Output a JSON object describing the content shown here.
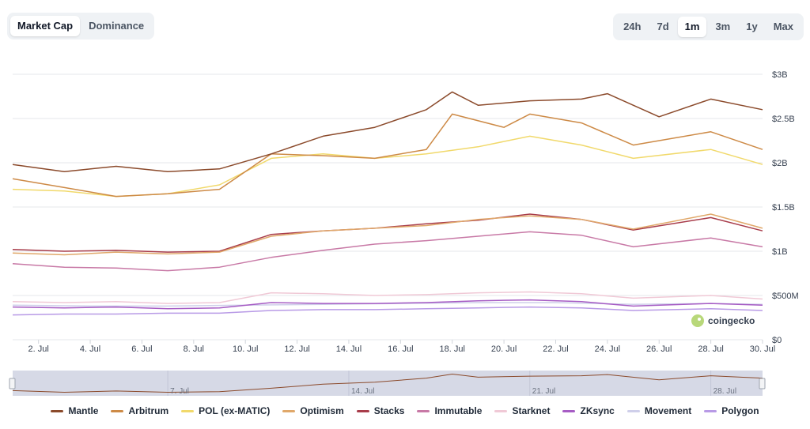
{
  "tabs_left": [
    {
      "label": "Market Cap",
      "active": true
    },
    {
      "label": "Dominance",
      "active": false
    }
  ],
  "tabs_right": [
    {
      "label": "24h",
      "active": false
    },
    {
      "label": "7d",
      "active": false
    },
    {
      "label": "1m",
      "active": true
    },
    {
      "label": "3m",
      "active": false
    },
    {
      "label": "1y",
      "active": false
    },
    {
      "label": "Max",
      "active": false
    }
  ],
  "watermark": "coingecko",
  "chart_data": {
    "type": "line",
    "x_start": "2024-07-01",
    "x_end": "2024-07-30",
    "x_tick_labels": [
      "2. Jul",
      "4. Jul",
      "6. Jul",
      "8. Jul",
      "10. Jul",
      "12. Jul",
      "14. Jul",
      "16. Jul",
      "18. Jul",
      "20. Jul",
      "22. Jul",
      "24. Jul",
      "26. Jul",
      "28. Jul",
      "30. Jul"
    ],
    "x_ticks": [
      "2024-07-02",
      "2024-07-04",
      "2024-07-06",
      "2024-07-08",
      "2024-07-10",
      "2024-07-12",
      "2024-07-14",
      "2024-07-16",
      "2024-07-18",
      "2024-07-20",
      "2024-07-22",
      "2024-07-24",
      "2024-07-26",
      "2024-07-28",
      "2024-07-30"
    ],
    "y_tick_labels": [
      "$0",
      "$500M",
      "$1B",
      "$1.5B",
      "$2B",
      "$2.5B",
      "$3B"
    ],
    "y_ticks": [
      0,
      500000000,
      1000000000,
      1500000000,
      2000000000,
      2500000000,
      3000000000
    ],
    "ylim": [
      0,
      3000000000
    ],
    "grid": true,
    "legend_position": "bottom",
    "navigator_labels": [
      "7. Jul",
      "14. Jul",
      "21. Jul",
      "28. Jul"
    ],
    "navigator_ticks": [
      "2024-07-07",
      "2024-07-14",
      "2024-07-21",
      "2024-07-28"
    ],
    "series": [
      {
        "name": "Mantle",
        "color": "#8b4a2b",
        "points": [
          [
            "2024-07-01",
            1980000000
          ],
          [
            "2024-07-03",
            1900000000
          ],
          [
            "2024-07-05",
            1960000000
          ],
          [
            "2024-07-07",
            1900000000
          ],
          [
            "2024-07-09",
            1930000000
          ],
          [
            "2024-07-11",
            2100000000
          ],
          [
            "2024-07-13",
            2300000000
          ],
          [
            "2024-07-15",
            2400000000
          ],
          [
            "2024-07-17",
            2600000000
          ],
          [
            "2024-07-18",
            2800000000
          ],
          [
            "2024-07-19",
            2650000000
          ],
          [
            "2024-07-21",
            2700000000
          ],
          [
            "2024-07-23",
            2720000000
          ],
          [
            "2024-07-24",
            2780000000
          ],
          [
            "2024-07-26",
            2520000000
          ],
          [
            "2024-07-28",
            2720000000
          ],
          [
            "2024-07-30",
            2600000000
          ]
        ]
      },
      {
        "name": "Arbitrum",
        "color": "#cd8a46",
        "points": [
          [
            "2024-07-01",
            1820000000
          ],
          [
            "2024-07-03",
            1720000000
          ],
          [
            "2024-07-05",
            1620000000
          ],
          [
            "2024-07-07",
            1650000000
          ],
          [
            "2024-07-09",
            1700000000
          ],
          [
            "2024-07-11",
            2100000000
          ],
          [
            "2024-07-13",
            2080000000
          ],
          [
            "2024-07-15",
            2050000000
          ],
          [
            "2024-07-17",
            2150000000
          ],
          [
            "2024-07-18",
            2550000000
          ],
          [
            "2024-07-20",
            2400000000
          ],
          [
            "2024-07-21",
            2550000000
          ],
          [
            "2024-07-23",
            2450000000
          ],
          [
            "2024-07-25",
            2200000000
          ],
          [
            "2024-07-28",
            2350000000
          ],
          [
            "2024-07-30",
            2150000000
          ]
        ]
      },
      {
        "name": "POL (ex-MATIC)",
        "color": "#f1d96b",
        "points": [
          [
            "2024-07-01",
            1700000000
          ],
          [
            "2024-07-03",
            1680000000
          ],
          [
            "2024-07-05",
            1620000000
          ],
          [
            "2024-07-07",
            1650000000
          ],
          [
            "2024-07-09",
            1750000000
          ],
          [
            "2024-07-11",
            2050000000
          ],
          [
            "2024-07-13",
            2100000000
          ],
          [
            "2024-07-15",
            2050000000
          ],
          [
            "2024-07-17",
            2100000000
          ],
          [
            "2024-07-19",
            2180000000
          ],
          [
            "2024-07-21",
            2300000000
          ],
          [
            "2024-07-23",
            2200000000
          ],
          [
            "2024-07-25",
            2050000000
          ],
          [
            "2024-07-28",
            2150000000
          ],
          [
            "2024-07-30",
            1980000000
          ]
        ]
      },
      {
        "name": "Optimism",
        "color": "#e0a86a",
        "points": [
          [
            "2024-07-01",
            980000000
          ],
          [
            "2024-07-03",
            960000000
          ],
          [
            "2024-07-05",
            990000000
          ],
          [
            "2024-07-07",
            970000000
          ],
          [
            "2024-07-09",
            990000000
          ],
          [
            "2024-07-11",
            1170000000
          ],
          [
            "2024-07-13",
            1230000000
          ],
          [
            "2024-07-15",
            1260000000
          ],
          [
            "2024-07-17",
            1290000000
          ],
          [
            "2024-07-19",
            1360000000
          ],
          [
            "2024-07-21",
            1400000000
          ],
          [
            "2024-07-23",
            1360000000
          ],
          [
            "2024-07-25",
            1250000000
          ],
          [
            "2024-07-28",
            1420000000
          ],
          [
            "2024-07-30",
            1260000000
          ]
        ]
      },
      {
        "name": "Stacks",
        "color": "#a83c4a",
        "points": [
          [
            "2024-07-01",
            1020000000
          ],
          [
            "2024-07-03",
            1000000000
          ],
          [
            "2024-07-05",
            1010000000
          ],
          [
            "2024-07-07",
            990000000
          ],
          [
            "2024-07-09",
            1000000000
          ],
          [
            "2024-07-11",
            1190000000
          ],
          [
            "2024-07-13",
            1230000000
          ],
          [
            "2024-07-15",
            1260000000
          ],
          [
            "2024-07-17",
            1310000000
          ],
          [
            "2024-07-19",
            1350000000
          ],
          [
            "2024-07-21",
            1420000000
          ],
          [
            "2024-07-23",
            1360000000
          ],
          [
            "2024-07-25",
            1240000000
          ],
          [
            "2024-07-28",
            1380000000
          ],
          [
            "2024-07-30",
            1230000000
          ]
        ]
      },
      {
        "name": "Immutable",
        "color": "#c879a6",
        "points": [
          [
            "2024-07-01",
            860000000
          ],
          [
            "2024-07-03",
            820000000
          ],
          [
            "2024-07-05",
            810000000
          ],
          [
            "2024-07-07",
            780000000
          ],
          [
            "2024-07-09",
            820000000
          ],
          [
            "2024-07-11",
            930000000
          ],
          [
            "2024-07-13",
            1010000000
          ],
          [
            "2024-07-15",
            1080000000
          ],
          [
            "2024-07-17",
            1120000000
          ],
          [
            "2024-07-19",
            1170000000
          ],
          [
            "2024-07-21",
            1220000000
          ],
          [
            "2024-07-23",
            1180000000
          ],
          [
            "2024-07-25",
            1050000000
          ],
          [
            "2024-07-28",
            1150000000
          ],
          [
            "2024-07-30",
            1050000000
          ]
        ]
      },
      {
        "name": "Starknet",
        "color": "#f0c9d6",
        "points": [
          [
            "2024-07-01",
            430000000
          ],
          [
            "2024-07-03",
            420000000
          ],
          [
            "2024-07-05",
            430000000
          ],
          [
            "2024-07-07",
            410000000
          ],
          [
            "2024-07-09",
            420000000
          ],
          [
            "2024-07-11",
            530000000
          ],
          [
            "2024-07-13",
            520000000
          ],
          [
            "2024-07-15",
            500000000
          ],
          [
            "2024-07-17",
            510000000
          ],
          [
            "2024-07-19",
            530000000
          ],
          [
            "2024-07-21",
            540000000
          ],
          [
            "2024-07-23",
            520000000
          ],
          [
            "2024-07-25",
            470000000
          ],
          [
            "2024-07-28",
            500000000
          ],
          [
            "2024-07-30",
            460000000
          ]
        ]
      },
      {
        "name": "ZKsync",
        "color": "#a65cc4",
        "points": [
          [
            "2024-07-01",
            370000000
          ],
          [
            "2024-07-03",
            360000000
          ],
          [
            "2024-07-05",
            370000000
          ],
          [
            "2024-07-07",
            350000000
          ],
          [
            "2024-07-09",
            360000000
          ],
          [
            "2024-07-11",
            420000000
          ],
          [
            "2024-07-13",
            410000000
          ],
          [
            "2024-07-15",
            410000000
          ],
          [
            "2024-07-17",
            420000000
          ],
          [
            "2024-07-19",
            440000000
          ],
          [
            "2024-07-21",
            450000000
          ],
          [
            "2024-07-23",
            430000000
          ],
          [
            "2024-07-25",
            380000000
          ],
          [
            "2024-07-28",
            410000000
          ],
          [
            "2024-07-30",
            390000000
          ]
        ]
      },
      {
        "name": "Movement",
        "color": "#cfcfea",
        "points": [
          [
            "2024-07-01",
            390000000
          ],
          [
            "2024-07-04",
            380000000
          ],
          [
            "2024-07-07",
            380000000
          ],
          [
            "2024-07-10",
            390000000
          ],
          [
            "2024-07-13",
            400000000
          ],
          [
            "2024-07-16",
            410000000
          ],
          [
            "2024-07-19",
            420000000
          ],
          [
            "2024-07-22",
            420000000
          ],
          [
            "2024-07-25",
            400000000
          ],
          [
            "2024-07-28",
            410000000
          ],
          [
            "2024-07-30",
            400000000
          ]
        ]
      },
      {
        "name": "Polygon",
        "color": "#b89ae6",
        "points": [
          [
            "2024-07-01",
            280000000
          ],
          [
            "2024-07-03",
            290000000
          ],
          [
            "2024-07-05",
            290000000
          ],
          [
            "2024-07-07",
            300000000
          ],
          [
            "2024-07-09",
            300000000
          ],
          [
            "2024-07-11",
            330000000
          ],
          [
            "2024-07-13",
            340000000
          ],
          [
            "2024-07-15",
            340000000
          ],
          [
            "2024-07-17",
            350000000
          ],
          [
            "2024-07-19",
            360000000
          ],
          [
            "2024-07-21",
            370000000
          ],
          [
            "2024-07-23",
            360000000
          ],
          [
            "2024-07-25",
            330000000
          ],
          [
            "2024-07-28",
            350000000
          ],
          [
            "2024-07-30",
            330000000
          ]
        ]
      }
    ]
  }
}
